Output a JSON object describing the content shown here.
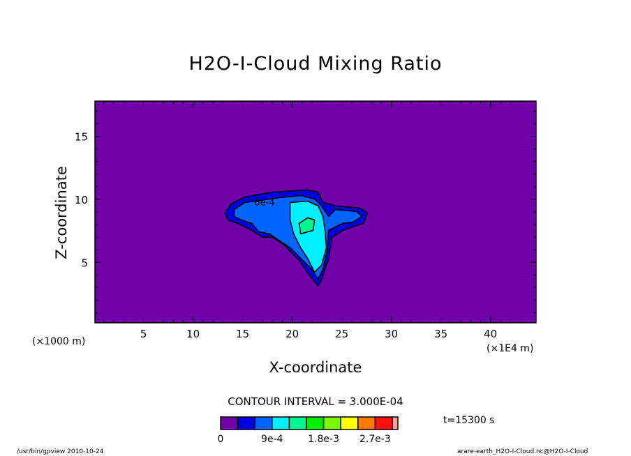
{
  "chart_data": {
    "type": "contour",
    "title": "H2O-I-Cloud Mixing Ratio",
    "xlabel": "X-coordinate",
    "ylabel": "Z-coordinate",
    "x_unit_left": "(×1000 m)",
    "x_unit_right": "(×1E4 m)",
    "xlim": [
      0.1,
      44.6
    ],
    "ylim": [
      0.2,
      17.8
    ],
    "xticks": [
      5,
      10,
      15,
      20,
      25,
      30,
      35,
      40
    ],
    "yticks": [
      5,
      10,
      15
    ],
    "contour_interval_text": "CONTOUR INTERVAL = 3.000E-04",
    "time_text": "t=15300 s",
    "contour_label": {
      "text": "6e-4",
      "x": 17.2,
      "z": 9.8
    },
    "background_color": "#7000a8",
    "levels": [
      {
        "level": 0.0003,
        "color": "#0000e0",
        "polygon": [
          [
            13.24,
            8.92
          ],
          [
            13.8,
            9.64
          ],
          [
            15.2,
            10.19
          ],
          [
            18.0,
            10.58
          ],
          [
            21.5,
            10.75
          ],
          [
            22.6,
            10.58
          ],
          [
            23.1,
            9.75
          ],
          [
            24.4,
            9.48
          ],
          [
            26.8,
            9.31
          ],
          [
            27.6,
            8.92
          ],
          [
            27.2,
            8.09
          ],
          [
            26.1,
            7.82
          ],
          [
            25.1,
            7.54
          ],
          [
            24.0,
            6.99
          ],
          [
            23.7,
            5.33
          ],
          [
            23.3,
            4.5
          ],
          [
            23.0,
            3.67
          ],
          [
            22.6,
            3.12
          ],
          [
            22.3,
            3.4
          ],
          [
            21.5,
            4.23
          ],
          [
            20.8,
            5.06
          ],
          [
            20.1,
            5.61
          ],
          [
            19.1,
            6.44
          ],
          [
            18.0,
            6.99
          ],
          [
            17.0,
            6.99
          ],
          [
            15.9,
            7.54
          ],
          [
            14.5,
            8.09
          ],
          [
            13.5,
            8.37
          ]
        ]
      },
      {
        "level": 0.0006,
        "color": "#0064ff",
        "polygon": [
          [
            14.15,
            9.2
          ],
          [
            15.21,
            9.75
          ],
          [
            18.73,
            10.14
          ],
          [
            20.85,
            10.3
          ],
          [
            22.25,
            10.03
          ],
          [
            22.96,
            9.48
          ],
          [
            23.66,
            8.65
          ],
          [
            24.37,
            9.2
          ],
          [
            26.48,
            9.03
          ],
          [
            27.04,
            8.65
          ],
          [
            26.13,
            8.2
          ],
          [
            25.07,
            8.09
          ],
          [
            23.66,
            7.54
          ],
          [
            23.52,
            5.88
          ],
          [
            23.1,
            4.5
          ],
          [
            22.61,
            3.67
          ],
          [
            21.9,
            4.5
          ],
          [
            20.85,
            5.33
          ],
          [
            19.79,
            6.16
          ],
          [
            18.73,
            6.71
          ],
          [
            17.68,
            7.27
          ],
          [
            16.62,
            7.43
          ],
          [
            15.92,
            8.09
          ],
          [
            14.86,
            8.37
          ],
          [
            14.15,
            8.65
          ]
        ]
      },
      {
        "level": 0.0009,
        "color": "#00f0ff",
        "polygon": [
          [
            19.79,
            9.75
          ],
          [
            21.55,
            9.86
          ],
          [
            22.61,
            9.48
          ],
          [
            23.1,
            8.65
          ],
          [
            23.31,
            7.54
          ],
          [
            23.45,
            6.16
          ],
          [
            22.96,
            4.78
          ],
          [
            22.25,
            4.23
          ],
          [
            21.55,
            5.33
          ],
          [
            20.85,
            6.16
          ],
          [
            20.14,
            7.27
          ],
          [
            19.79,
            8.37
          ]
        ]
      },
      {
        "level": 0.0012,
        "color": "#00f890",
        "polygon": [
          [
            20.7,
            8.09
          ],
          [
            21.55,
            8.54
          ],
          [
            22.25,
            8.37
          ],
          [
            22.11,
            7.54
          ],
          [
            20.85,
            7.27
          ]
        ]
      }
    ],
    "colorbar": {
      "colors": [
        "#7000a8",
        "#0000e0",
        "#0064ff",
        "#00f0ff",
        "#00f890",
        "#00ee00",
        "#7cf800",
        "#ffff00",
        "#ff7800",
        "#ff1010",
        "#ffa0a0"
      ],
      "labels": [
        {
          "text": "0",
          "index": 0
        },
        {
          "text": "9e-4",
          "index": 3
        },
        {
          "text": "1.8e-3",
          "index": 6
        },
        {
          "text": "2.7e-3",
          "index": 9
        }
      ]
    }
  },
  "footer": {
    "left": "/usr/bin/gpview  2010-10-24",
    "right": "arare-earth_H2O-I-Cloud.nc@H2O-I-Cloud"
  }
}
